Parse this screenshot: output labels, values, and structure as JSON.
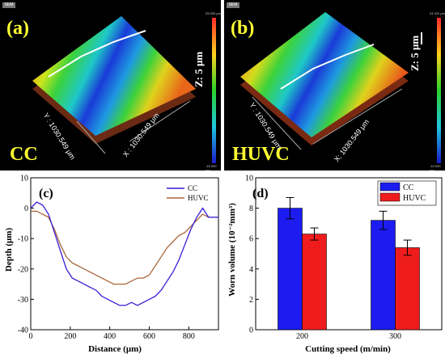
{
  "panels": [
    {
      "letter": "(a)",
      "condition": "CC",
      "z_label": "Z: 5 μm",
      "x_label": "X : 1030.549 μm",
      "y_label": "Y : 1030.549 μm",
      "scale_max": "25.000 μm",
      "scale_min": "-15.000 μm",
      "logo": "SEM"
    },
    {
      "letter": "(b)",
      "condition": "HUVC",
      "z_label": "Z: 5 μm",
      "x_label": "X: 1030.549 μm",
      "y_label": "Y : 1030.549 μm",
      "scale_max": "24.322 μm",
      "scale_min": "-10.000 μm",
      "logo": "SEM"
    }
  ],
  "colors": {
    "cc_line": "#3a1ad6",
    "huvc_line": "#a8673a",
    "cc_bar": "#1c1cf0",
    "huvc_bar": "#ee1c1c",
    "label_yellow": "#ffff33"
  },
  "chart_data": [
    {
      "type": "line",
      "panel_label": "(c)",
      "xlabel": "Distance (μm)",
      "ylabel": "Depth (μm)",
      "xlim": [
        0,
        950
      ],
      "ylim": [
        -40,
        10
      ],
      "xticks": [
        0,
        200,
        400,
        600,
        800
      ],
      "yticks": [
        -40,
        -30,
        -20,
        -10,
        0,
        10
      ],
      "legend": "top-right",
      "series": [
        {
          "name": "CC",
          "x": [
            0,
            30,
            60,
            90,
            120,
            150,
            180,
            210,
            240,
            270,
            300,
            330,
            360,
            390,
            420,
            450,
            480,
            510,
            540,
            570,
            600,
            630,
            660,
            690,
            720,
            750,
            780,
            810,
            840,
            870,
            900,
            930,
            950
          ],
          "y": [
            0,
            2,
            1,
            -2,
            -8,
            -14,
            -20,
            -23,
            -24,
            -25,
            -26,
            -27,
            -29,
            -30,
            -31,
            -32,
            -32,
            -31,
            -32,
            -31,
            -30,
            -29,
            -27,
            -24,
            -21,
            -17,
            -12,
            -7,
            -3,
            0,
            -3,
            -3,
            -3
          ]
        },
        {
          "name": "HUVC",
          "x": [
            0,
            30,
            60,
            90,
            120,
            150,
            180,
            210,
            240,
            270,
            300,
            330,
            360,
            390,
            420,
            450,
            480,
            510,
            540,
            570,
            600,
            630,
            660,
            690,
            720,
            750,
            780,
            810,
            840,
            870,
            900,
            930,
            950
          ],
          "y": [
            -1,
            -1,
            -2,
            -3,
            -7,
            -12,
            -16,
            -18,
            -19,
            -20,
            -21,
            -22,
            -23,
            -24,
            -25,
            -25,
            -25,
            -24,
            -23,
            -23,
            -22,
            -19,
            -16,
            -13,
            -11,
            -9,
            -8,
            -6,
            -4,
            -2,
            -3,
            -3,
            -3
          ]
        }
      ]
    },
    {
      "type": "bar",
      "panel_label": "(d)",
      "categories": [
        "200",
        "300"
      ],
      "xlabel": "Cutting speed (m/min)",
      "ylabel": "Worn volume (10⁻²mm³)",
      "ylim": [
        0,
        10
      ],
      "yticks": [
        0,
        2,
        4,
        6,
        8,
        10
      ],
      "legend": "top-right",
      "series": [
        {
          "name": "CC",
          "values": [
            8.0,
            7.2
          ],
          "errors": [
            0.7,
            0.6
          ]
        },
        {
          "name": "HUVC",
          "values": [
            6.3,
            5.4
          ],
          "errors": [
            0.4,
            0.5
          ]
        }
      ]
    }
  ]
}
